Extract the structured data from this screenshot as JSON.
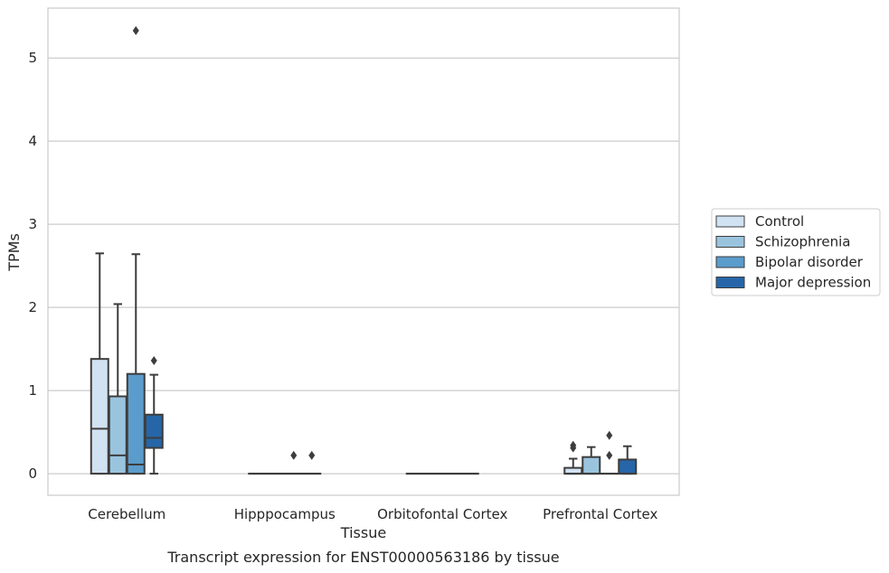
{
  "caption": "Transcript expression for ENST00000563186 by tissue",
  "chart_data": {
    "type": "box",
    "xlabel": "Tissue",
    "ylabel": "TPMs",
    "ylim": [
      -0.26,
      5.6
    ],
    "yticks": [
      0,
      1,
      2,
      3,
      4,
      5
    ],
    "grid": "horizontal",
    "legend_position": "right",
    "categories": [
      "Cerebellum",
      "Hipppocampus",
      "Orbitofontal Cortex",
      "Prefrontal Cortex"
    ],
    "series": [
      {
        "name": "Control",
        "color": "#d1e2f2",
        "boxes": [
          {
            "whisker_low": 0,
            "q1": 0,
            "median": 0.54,
            "q3": 1.38,
            "whisker_high": 2.65,
            "outliers": []
          },
          {
            "whisker_low": 0,
            "q1": 0,
            "median": 0,
            "q3": 0,
            "whisker_high": 0,
            "outliers": []
          },
          {
            "whisker_low": 0,
            "q1": 0,
            "median": 0,
            "q3": 0,
            "whisker_high": 0,
            "outliers": []
          },
          {
            "whisker_low": 0,
            "q1": 0,
            "median": 0,
            "q3": 0.07,
            "whisker_high": 0.18,
            "outliers": [
              0.31,
              0.34
            ]
          }
        ]
      },
      {
        "name": "Schizophrenia",
        "color": "#9ac4de",
        "boxes": [
          {
            "whisker_low": 0,
            "q1": 0,
            "median": 0.22,
            "q3": 0.93,
            "whisker_high": 2.04,
            "outliers": []
          },
          {
            "whisker_low": 0,
            "q1": 0,
            "median": 0,
            "q3": 0,
            "whisker_high": 0,
            "outliers": []
          },
          {
            "whisker_low": 0,
            "q1": 0,
            "median": 0,
            "q3": 0,
            "whisker_high": 0,
            "outliers": []
          },
          {
            "whisker_low": 0,
            "q1": 0,
            "median": 0,
            "q3": 0.2,
            "whisker_high": 0.32,
            "outliers": []
          }
        ]
      },
      {
        "name": "Bipolar disorder",
        "color": "#5a9ccb",
        "boxes": [
          {
            "whisker_low": 0,
            "q1": 0,
            "median": 0.11,
            "q3": 1.2,
            "whisker_high": 2.64,
            "outliers": [
              5.33
            ]
          },
          {
            "whisker_low": 0,
            "q1": 0,
            "median": 0,
            "q3": 0,
            "whisker_high": 0,
            "outliers": [
              0.22
            ]
          },
          {
            "whisker_low": 0,
            "q1": 0,
            "median": 0,
            "q3": 0,
            "whisker_high": 0,
            "outliers": []
          },
          {
            "whisker_low": 0,
            "q1": 0,
            "median": 0,
            "q3": 0,
            "whisker_high": 0,
            "outliers": [
              0.22,
              0.46
            ]
          }
        ]
      },
      {
        "name": "Major depression",
        "color": "#2666a8",
        "boxes": [
          {
            "whisker_low": 0,
            "q1": 0.31,
            "median": 0.43,
            "q3": 0.71,
            "whisker_high": 1.19,
            "outliers": [
              1.36
            ]
          },
          {
            "whisker_low": 0,
            "q1": 0,
            "median": 0,
            "q3": 0,
            "whisker_high": 0,
            "outliers": [
              0.22
            ]
          },
          {
            "whisker_low": 0,
            "q1": 0,
            "median": 0,
            "q3": 0,
            "whisker_high": 0,
            "outliers": []
          },
          {
            "whisker_low": 0,
            "q1": 0,
            "median": 0,
            "q3": 0.17,
            "whisker_high": 0.33,
            "outliers": []
          }
        ]
      }
    ]
  }
}
